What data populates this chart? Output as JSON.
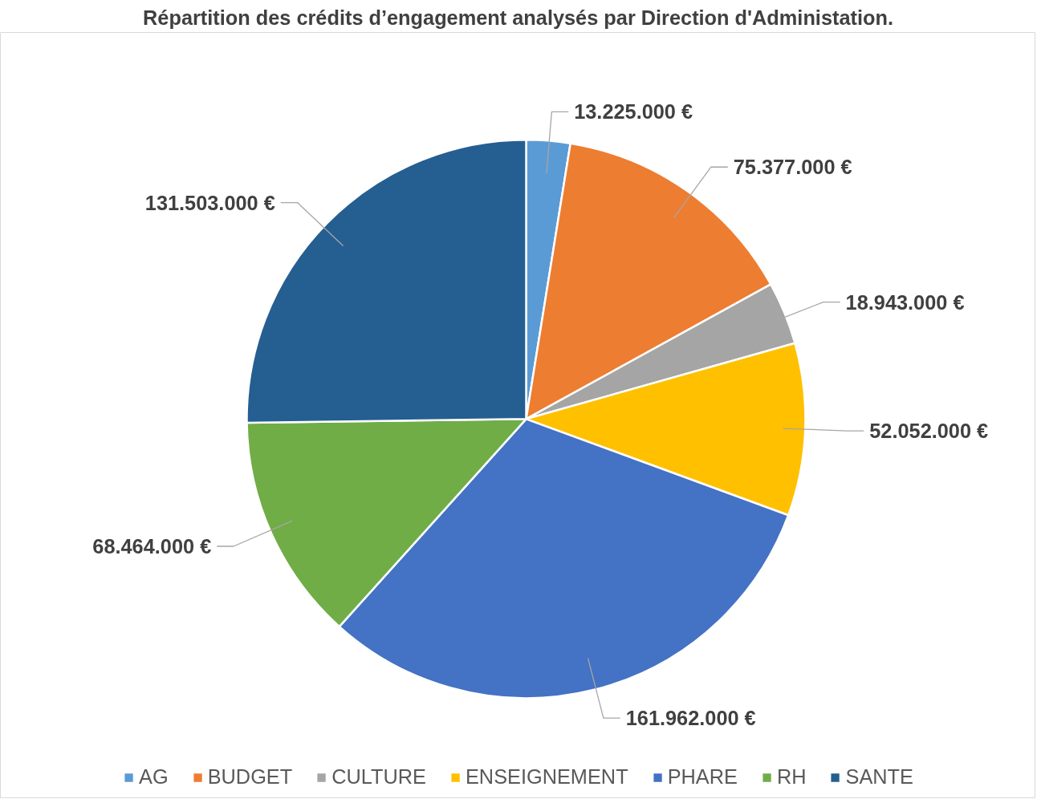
{
  "chart_data": {
    "type": "pie",
    "title": "Répartition des crédits d’engagement analysés par Direction d'Administation.",
    "categories": [
      "AG",
      "BUDGET",
      "CULTURE",
      "ENSEIGNEMENT",
      "PHARE",
      "RH",
      "SANTE"
    ],
    "values": [
      13225000,
      75377000,
      18943000,
      52052000,
      161962000,
      68464000,
      131503000
    ],
    "colors": [
      "#5b9bd5",
      "#ed7d31",
      "#a5a5a5",
      "#ffc000",
      "#4472c4",
      "#70ad47",
      "#255e91"
    ],
    "value_labels": [
      "13.225.000 €",
      "75.377.000 €",
      "18.943.000 €",
      "52.052.000 €",
      "161.962.000 €",
      "68.464.000 €",
      "131.503.000 €"
    ],
    "legend": "bottom"
  }
}
